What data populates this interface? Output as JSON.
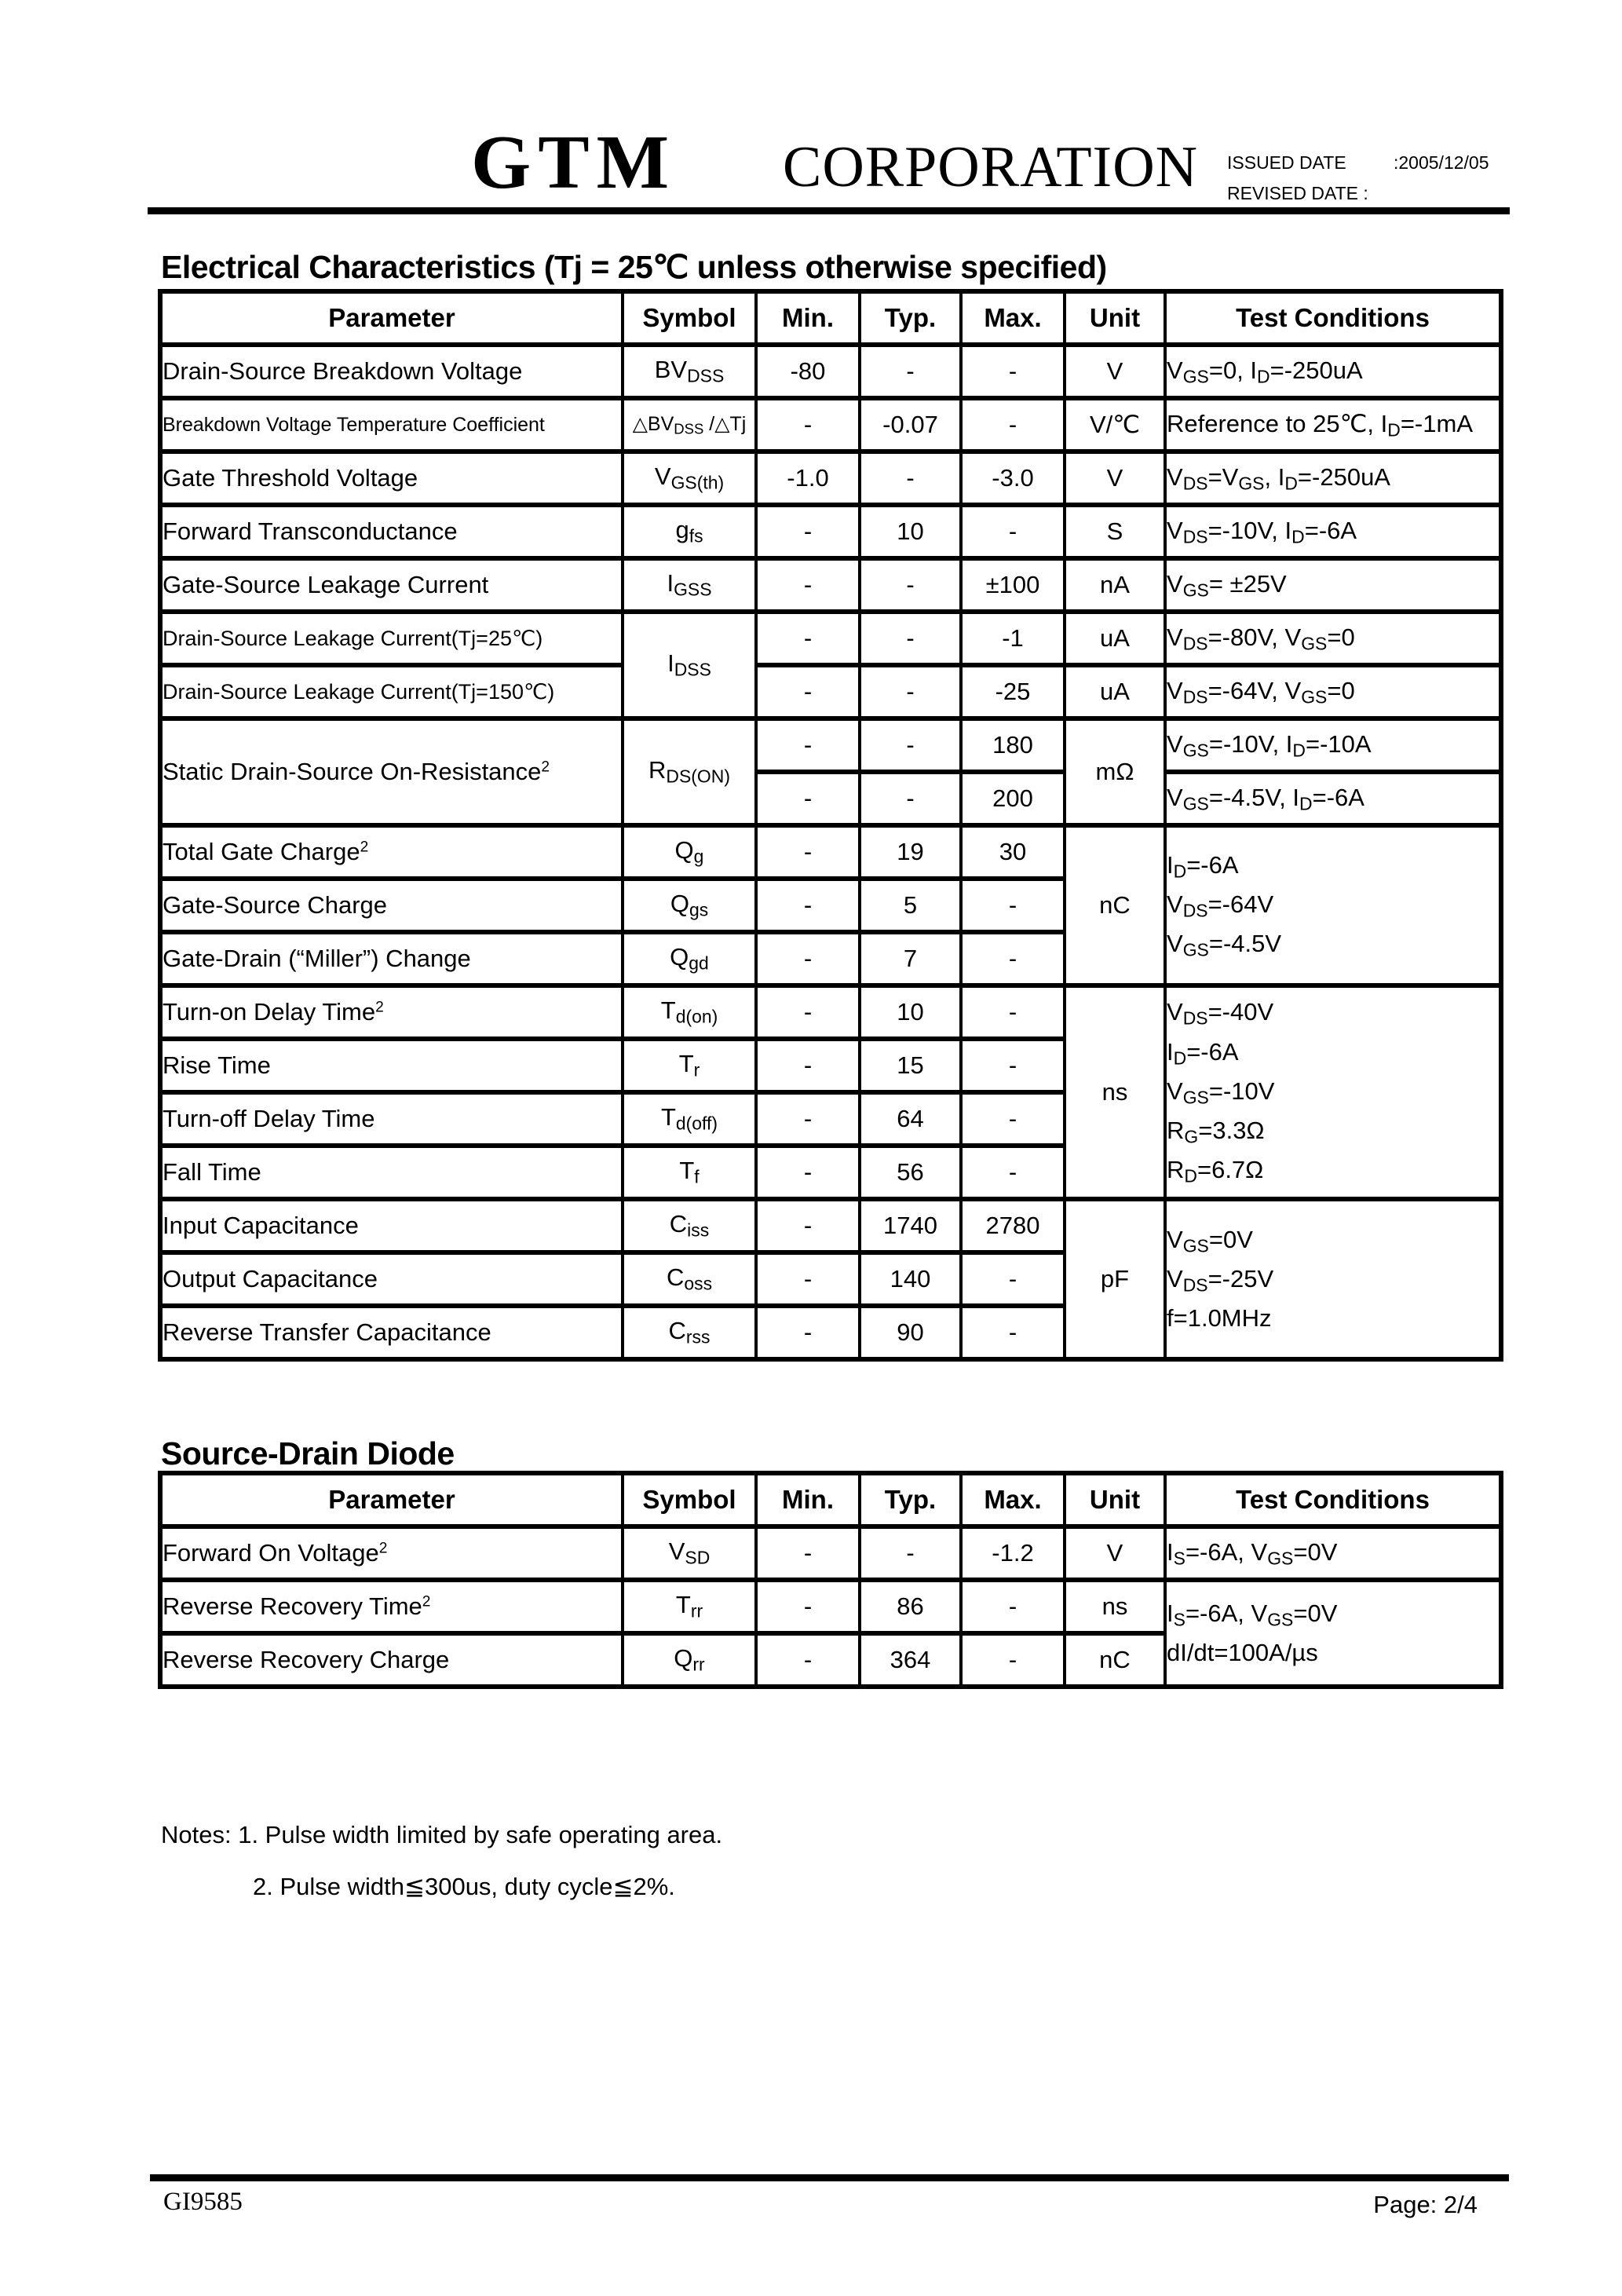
{
  "header": {
    "logo": "GTM",
    "company": "CORPORATION",
    "issued_label": "ISSUED DATE",
    "issued_value": ":2005/12/05",
    "revised_label": "REVISED DATE :"
  },
  "electrical": {
    "title": "Electrical Characteristics (Tj = 25℃ unless otherwise specified)",
    "table": {
      "columns": [
        "Parameter",
        "Symbol",
        "Min.",
        "Typ.",
        "Max.",
        "Unit",
        "Test Conditions"
      ],
      "rows": [
        [
          "Drain-Source Breakdown Voltage",
          "BV~DSS~",
          "-80",
          "-",
          "-",
          "V",
          "V~GS~=0, I~D~=-250uA"
        ],
        [
          "Breakdown Voltage Temperature Coefficient",
          "△BV~DSS~ /△Tj",
          "-",
          "-0.07",
          "-",
          "V/℃",
          "Reference to 25℃, I~D~=-1mA"
        ],
        [
          "Gate Threshold Voltage",
          "V~GS(th)~",
          "-1.0",
          "-",
          "-3.0",
          "V",
          "V~DS~=V~GS~, I~D~=-250uA"
        ],
        [
          "Forward Transconductance",
          "g~fs~",
          "-",
          "10",
          "-",
          "S",
          "V~DS~=-10V, I~D~=-6A"
        ],
        [
          "Gate-Source Leakage Current",
          "I~GSS~",
          "-",
          "-",
          "±100",
          "nA",
          "V~GS~= ±25V"
        ],
        [
          "Drain-Source Leakage Current(Tj=25℃)",
          {
            "t": "I~DSS~",
            "rs": 2
          },
          "-",
          "-",
          "-1",
          "uA",
          "V~DS~=-80V, V~GS~=0"
        ],
        [
          "Drain-Source Leakage Current(Tj=150℃)",
          null,
          "-",
          "-",
          "-25",
          "uA",
          "V~DS~=-64V, V~GS~=0"
        ],
        [
          {
            "t": "Static Drain-Source On-Resistance^2^",
            "rs": 2
          },
          {
            "t": "R~DS(ON)~",
            "rs": 2
          },
          "-",
          "-",
          "180",
          {
            "t": "mΩ",
            "rs": 2
          },
          "V~GS~=-10V, I~D~=-10A"
        ],
        [
          null,
          null,
          "-",
          "-",
          "200",
          null,
          "V~GS~=-4.5V, I~D~=-6A"
        ],
        [
          "Total Gate Charge^2^",
          "Q~g~",
          "-",
          "19",
          "30",
          {
            "t": "nC",
            "rs": 3
          },
          {
            "t": "I~D~=-6A\nV~DS~=-64V\nV~GS~=-4.5V",
            "rs": 3
          }
        ],
        [
          "Gate-Source Charge",
          "Q~gs~",
          "-",
          "5",
          "-",
          null,
          null
        ],
        [
          "Gate-Drain (“Miller”) Change",
          "Q~gd~",
          "-",
          "7",
          "-",
          null,
          null
        ],
        [
          "Turn-on Delay Time^2^",
          "T~d(on)~",
          "-",
          "10",
          "-",
          {
            "t": "ns",
            "rs": 4
          },
          {
            "t": "V~DS~=-40V\nI~D~=-6A\nV~GS~=-10V\nR~G~=3.3Ω\nR~D~=6.7Ω",
            "rs": 4
          }
        ],
        [
          "Rise Time",
          "T~r~",
          "-",
          "15",
          "-",
          null,
          null
        ],
        [
          "Turn-off Delay Time",
          "T~d(off)~",
          "-",
          "64",
          "-",
          null,
          null
        ],
        [
          "Fall Time",
          "T~f~",
          "-",
          "56",
          "-",
          null,
          null
        ],
        [
          "Input Capacitance",
          "C~iss~",
          "-",
          "1740",
          "2780",
          {
            "t": "pF",
            "rs": 3
          },
          {
            "t": "V~GS~=0V\nV~DS~=-25V\nf=1.0MHz",
            "rs": 3
          }
        ],
        [
          "Output Capacitance",
          "C~oss~",
          "-",
          "140",
          "-",
          null,
          null
        ],
        [
          "Reverse Transfer Capacitance",
          "C~rss~",
          "-",
          "90",
          "-",
          null,
          null
        ]
      ]
    }
  },
  "diode": {
    "title": "Source-Drain Diode",
    "table": {
      "columns": [
        "Parameter",
        "Symbol",
        "Min.",
        "Typ.",
        "Max.",
        "Unit",
        "Test Conditions"
      ],
      "rows": [
        [
          "Forward On Voltage^2^",
          "V~SD~",
          "-",
          "-",
          "-1.2",
          "V",
          "I~S~=-6A, V~GS~=0V"
        ],
        [
          "Reverse Recovery Time^2^",
          "T~rr~",
          "-",
          "86",
          "-",
          "ns",
          {
            "t": "I~S~=-6A, V~GS~=0V\ndI/dt=100A/µs",
            "rs": 2
          }
        ],
        [
          "Reverse Recovery Charge",
          "Q~rr~",
          "-",
          "364",
          "-",
          "nC",
          null
        ]
      ]
    }
  },
  "notes": {
    "line1": "Notes: 1. Pulse width limited by safe operating area.",
    "line2": "2. Pulse width≦300us, duty cycle≦2%."
  },
  "footer": {
    "doc_number": "GI9585",
    "page": "Page: 2/4"
  }
}
